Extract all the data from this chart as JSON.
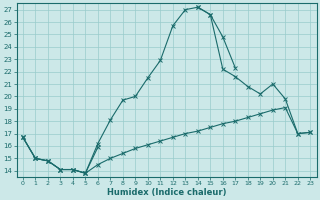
{
  "xlabel": "Humidex (Indice chaleur)",
  "background_color": "#cce8e8",
  "grid_color": "#99cccc",
  "line_color": "#1a6b6b",
  "xlim": [
    -0.5,
    23.5
  ],
  "ylim": [
    13.5,
    27.5
  ],
  "yticks": [
    14,
    15,
    16,
    17,
    18,
    19,
    20,
    21,
    22,
    23,
    24,
    25,
    26,
    27
  ],
  "xticks": [
    0,
    1,
    2,
    3,
    4,
    5,
    6,
    7,
    8,
    9,
    10,
    11,
    12,
    13,
    14,
    15,
    16,
    17,
    18,
    19,
    20,
    21,
    22,
    23
  ],
  "curve1_x": [
    0,
    1,
    2,
    3,
    4,
    5,
    6,
    7,
    8,
    9,
    10,
    11,
    12,
    13,
    14,
    15,
    16,
    17
  ],
  "curve1_y": [
    16.7,
    15.0,
    14.8,
    14.1,
    14.1,
    13.8,
    16.2,
    18.1,
    19.7,
    20.0,
    21.5,
    22.9,
    25.7,
    27.0,
    27.2,
    26.6,
    24.8,
    22.3
  ],
  "curve2_seg1_x": [
    0,
    1,
    2,
    3,
    4,
    5,
    6
  ],
  "curve2_seg1_y": [
    16.7,
    15.0,
    14.8,
    14.1,
    14.1,
    13.8,
    15.9
  ],
  "curve2_seg2_x": [
    14,
    15,
    16,
    17,
    18,
    19,
    20,
    21,
    22,
    23
  ],
  "curve2_seg2_y": [
    27.2,
    26.6,
    22.2,
    21.6,
    20.8,
    20.2,
    21.0,
    19.8,
    17.0,
    17.1
  ],
  "curve3_x": [
    0,
    1,
    2,
    3,
    4,
    5,
    6,
    7,
    8,
    9,
    10,
    11,
    12,
    13,
    14,
    15,
    16,
    17,
    18,
    19,
    20,
    21,
    22,
    23
  ],
  "curve3_y": [
    16.7,
    15.0,
    14.8,
    14.1,
    14.1,
    13.8,
    14.5,
    15.0,
    15.4,
    15.8,
    16.1,
    16.4,
    16.7,
    17.0,
    17.2,
    17.5,
    17.8,
    18.0,
    18.3,
    18.6,
    18.9,
    19.1,
    17.0,
    17.1
  ]
}
